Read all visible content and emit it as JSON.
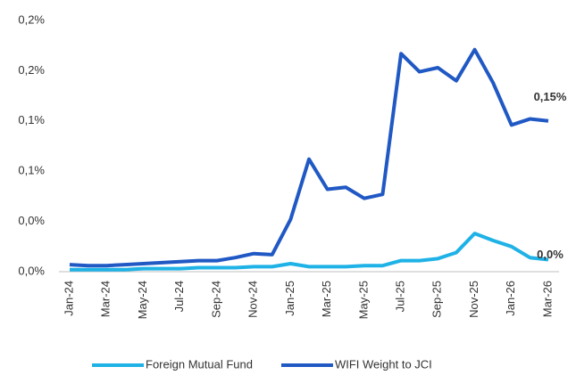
{
  "chart_data": {
    "type": "line",
    "categories": [
      "Jan-24",
      null,
      "Mar-24",
      null,
      "May-24",
      null,
      "Jul-24",
      null,
      "Sep-24",
      null,
      "Nov-24",
      null,
      "Jan-25",
      null,
      "Mar-25",
      null,
      "May-25",
      null,
      "Jul-25",
      null,
      "Sep-25",
      null,
      "Nov-25",
      null,
      "Jan-26",
      null,
      "Mar-26"
    ],
    "series": [
      {
        "name": "Foreign Mutual Fund",
        "color": "#1fb2e6",
        "values": [
          0.002,
          0.002,
          0.002,
          0.002,
          0.003,
          0.003,
          0.003,
          0.004,
          0.004,
          0.004,
          0.005,
          0.005,
          0.008,
          0.005,
          0.005,
          0.005,
          0.006,
          0.006,
          0.011,
          0.011,
          0.013,
          0.019,
          0.038,
          0.031,
          0.025,
          0.014,
          0.012
        ],
        "value_labels": [
          null,
          null,
          null,
          null,
          null,
          null,
          null,
          null,
          null,
          null,
          null,
          null,
          null,
          null,
          null,
          null,
          null,
          null,
          null,
          null,
          null,
          null,
          null,
          null,
          null,
          null,
          "0,0%"
        ]
      },
      {
        "name": "WIFI Weight to JCI",
        "color": "#2058c4",
        "values": [
          0.007,
          0.006,
          0.006,
          0.007,
          0.008,
          0.009,
          0.01,
          0.011,
          0.011,
          0.014,
          0.018,
          0.017,
          0.052,
          0.112,
          0.082,
          0.084,
          0.073,
          0.077,
          0.217,
          0.199,
          0.203,
          0.19,
          0.221,
          0.188,
          0.146,
          0.152,
          0.15
        ],
        "value_labels": [
          null,
          null,
          null,
          null,
          null,
          null,
          null,
          null,
          null,
          null,
          null,
          null,
          null,
          null,
          null,
          null,
          null,
          null,
          null,
          null,
          null,
          null,
          null,
          null,
          null,
          null,
          "0,15%"
        ]
      }
    ],
    "ylim": [
      0,
      0.25
    ],
    "yticks": [
      {
        "value": 0,
        "label": "0,0%"
      },
      {
        "value": 0.05,
        "label": "0,0%"
      },
      {
        "value": 0.1,
        "label": "0,1%"
      },
      {
        "value": 0.15,
        "label": "0,1%"
      },
      {
        "value": 0.2,
        "label": "0,2%"
      },
      {
        "value": 0.25,
        "label": "0,2%"
      }
    ],
    "legend": "bottom"
  }
}
